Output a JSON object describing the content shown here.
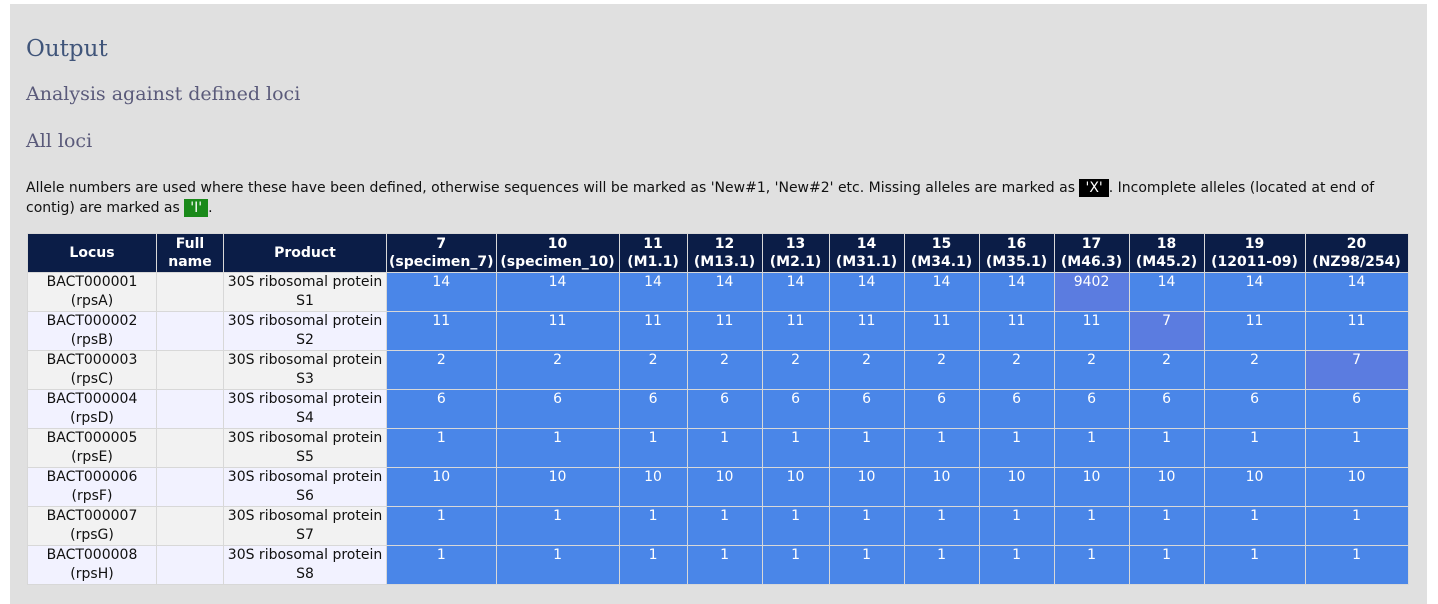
{
  "headings": {
    "output": "Output",
    "analysis": "Analysis against defined loci",
    "all_loci": "All loci"
  },
  "description": {
    "part1": "Allele numbers are used where these have been defined, otherwise sequences will be marked as 'New#1, 'New#2' etc. Missing alleles are marked as ",
    "missing_mark": "'X'",
    "part2": ". Incomplete alleles (located at end of contig) are marked as ",
    "incomplete_mark": "'I'",
    "part3": "."
  },
  "colors": {
    "header_bg": "#0b1d47",
    "allele_bg": "#4a86e8",
    "allele_diff_bg": "#5b7ce0",
    "missing_bg": "#000000",
    "incomplete_bg": "#1a8a1a"
  },
  "table": {
    "headers": {
      "locus": "Locus",
      "full_name": "Full name",
      "product": "Product"
    },
    "isolates": [
      {
        "id": "7",
        "name": "(specimen_7)"
      },
      {
        "id": "10",
        "name": "(specimen_10)"
      },
      {
        "id": "11",
        "name": "(M1.1)"
      },
      {
        "id": "12",
        "name": "(M13.1)"
      },
      {
        "id": "13",
        "name": "(M2.1)"
      },
      {
        "id": "14",
        "name": "(M31.1)"
      },
      {
        "id": "15",
        "name": "(M34.1)"
      },
      {
        "id": "16",
        "name": "(M35.1)"
      },
      {
        "id": "17",
        "name": "(M46.3)"
      },
      {
        "id": "18",
        "name": "(M45.2)"
      },
      {
        "id": "19",
        "name": "(12011-09)"
      },
      {
        "id": "20",
        "name": "(NZ98/254)"
      }
    ],
    "rows": [
      {
        "locus": "BACT000001",
        "alias": "(rpsA)",
        "full_name": "",
        "product_line1": "30S ribosomal protein",
        "product_line2": "S1",
        "alleles": [
          "14",
          "14",
          "14",
          "14",
          "14",
          "14",
          "14",
          "14",
          "9402",
          "14",
          "14",
          "14"
        ],
        "diff": [
          8
        ]
      },
      {
        "locus": "BACT000002",
        "alias": "(rpsB)",
        "full_name": "",
        "product_line1": "30S ribosomal protein",
        "product_line2": "S2",
        "alleles": [
          "11",
          "11",
          "11",
          "11",
          "11",
          "11",
          "11",
          "11",
          "11",
          "7",
          "11",
          "11"
        ],
        "diff": [
          9
        ]
      },
      {
        "locus": "BACT000003",
        "alias": "(rpsC)",
        "full_name": "",
        "product_line1": "30S ribosomal protein",
        "product_line2": "S3",
        "alleles": [
          "2",
          "2",
          "2",
          "2",
          "2",
          "2",
          "2",
          "2",
          "2",
          "2",
          "2",
          "7"
        ],
        "diff": [
          11
        ]
      },
      {
        "locus": "BACT000004",
        "alias": "(rpsD)",
        "full_name": "",
        "product_line1": "30S ribosomal protein",
        "product_line2": "S4",
        "alleles": [
          "6",
          "6",
          "6",
          "6",
          "6",
          "6",
          "6",
          "6",
          "6",
          "6",
          "6",
          "6"
        ],
        "diff": []
      },
      {
        "locus": "BACT000005",
        "alias": "(rpsE)",
        "full_name": "",
        "product_line1": "30S ribosomal protein",
        "product_line2": "S5",
        "alleles": [
          "1",
          "1",
          "1",
          "1",
          "1",
          "1",
          "1",
          "1",
          "1",
          "1",
          "1",
          "1"
        ],
        "diff": []
      },
      {
        "locus": "BACT000006",
        "alias": "(rpsF)",
        "full_name": "",
        "product_line1": "30S ribosomal protein",
        "product_line2": "S6",
        "alleles": [
          "10",
          "10",
          "10",
          "10",
          "10",
          "10",
          "10",
          "10",
          "10",
          "10",
          "10",
          "10"
        ],
        "diff": []
      },
      {
        "locus": "BACT000007",
        "alias": "(rpsG)",
        "full_name": "",
        "product_line1": "30S ribosomal protein",
        "product_line2": "S7",
        "alleles": [
          "1",
          "1",
          "1",
          "1",
          "1",
          "1",
          "1",
          "1",
          "1",
          "1",
          "1",
          "1"
        ],
        "diff": []
      },
      {
        "locus": "BACT000008",
        "alias": "(rpsH)",
        "full_name": "",
        "product_line1": "30S ribosomal protein",
        "product_line2": "S8",
        "alleles": [
          "1",
          "1",
          "1",
          "1",
          "1",
          "1",
          "1",
          "1",
          "1",
          "1",
          "1",
          "1"
        ],
        "diff": []
      }
    ]
  }
}
